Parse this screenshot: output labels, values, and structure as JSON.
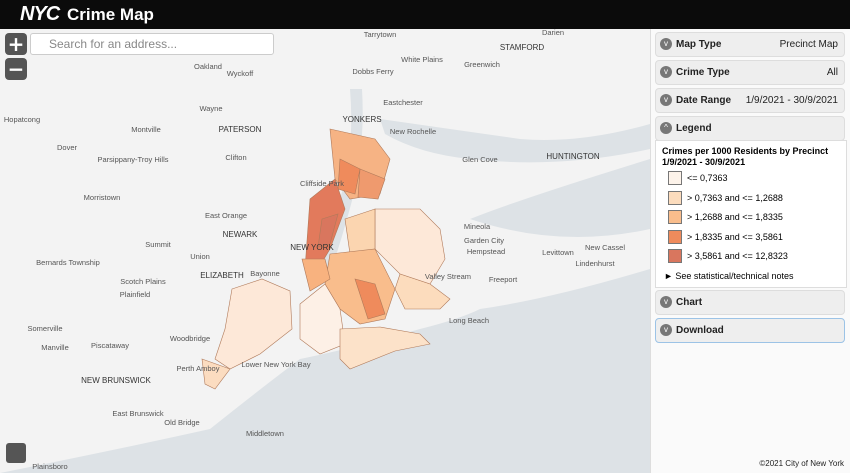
{
  "header": {
    "logo": "NYC",
    "title": "Crime Map"
  },
  "search": {
    "placeholder": "Search for an address..."
  },
  "panel": {
    "map_type": {
      "label": "Map Type",
      "value": "Precinct Map"
    },
    "crime_type": {
      "label": "Crime Type",
      "value": "All"
    },
    "date_range": {
      "label": "Date Range",
      "value": "1/9/2021 - 30/9/2021"
    },
    "legend": {
      "label": "Legend",
      "title": "Crimes per 1000 Residents by Precinct 1/9/2021 - 30/9/2021",
      "items": [
        {
          "label": "<= 0,7363",
          "color": "#fdf3ea"
        },
        {
          "label": "> 0,7363 and <= 1,2688",
          "color": "#fcdcbd"
        },
        {
          "label": "> 1,2688 and <= 1,8335",
          "color": "#f9bd8c"
        },
        {
          "label": "> 1,8335 and <= 3,5861",
          "color": "#ef8b5c"
        },
        {
          "label": "> 3,5861 and <= 12,8323",
          "color": "#d9765e"
        }
      ],
      "notes": "See statistical/technical notes"
    },
    "chart": {
      "label": "Chart"
    },
    "download": {
      "label": "Download"
    }
  },
  "footer": "©2021 City of New York",
  "map_labels": [
    "Tarrytown",
    "Darien",
    "STAMFORD",
    "Oakland",
    "Wyckoff",
    "White Plains",
    "Greenwich",
    "Dobbs Ferry",
    "Wayne",
    "Eastchester",
    "Hopatcong",
    "Montville",
    "PATERSON",
    "YONKERS",
    "New Rochelle",
    "HUNTINGTON",
    "Dover",
    "Parsippany-Troy Hills",
    "Glen Cove",
    "Clifton",
    "Cliffside Park",
    "Morristown",
    "East Orange",
    "Mineola",
    "NEWARK",
    "Garden City",
    "Summit",
    "NEW YORK",
    "New Cassel",
    "Hempstead",
    "Bernards Township",
    "Union",
    "Levittown",
    "Lindenhurst",
    "ELIZABETH",
    "Bayonne",
    "Valley Stream",
    "Freeport",
    "Scotch Plains",
    "Plainfield",
    "Long Beach",
    "Somerville",
    "Woodbridge",
    "Manville",
    "Piscataway",
    "Perth Amboy",
    "Lower New York Bay",
    "NEW BRUNSWICK",
    "East Brunswick",
    "Old Bridge",
    "Middletown",
    "Plainsboro"
  ]
}
